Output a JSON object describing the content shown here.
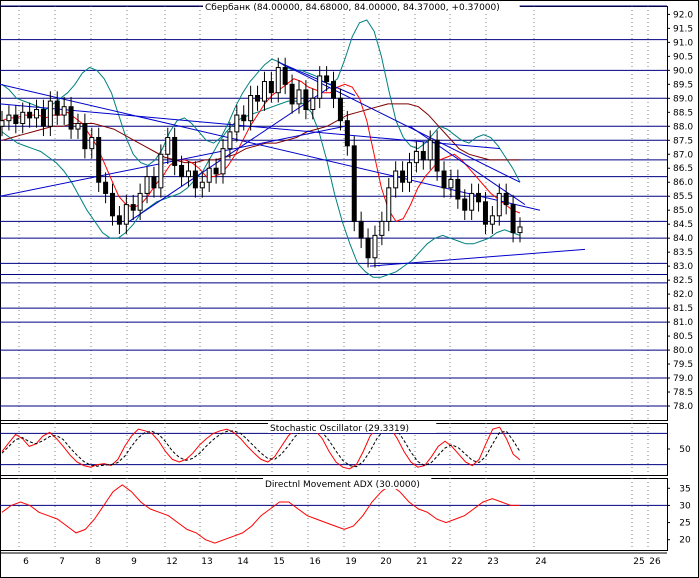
{
  "chart_data": [
    {
      "type": "candlestick",
      "title": "Сбербанк (84.00000, 84.68000, 84.00000, 84.37000, +0.37000)",
      "ylim": [
        77.5,
        92.3
      ],
      "y_ticks": [
        78.0,
        78.5,
        79.0,
        79.5,
        80.0,
        80.5,
        81.0,
        81.5,
        82.0,
        82.5,
        83.0,
        83.5,
        84.0,
        84.5,
        85.0,
        85.5,
        86.0,
        86.5,
        87.0,
        87.5,
        88.0,
        88.5,
        89.0,
        89.5,
        90.0,
        90.5,
        91.0,
        91.5,
        92.0
      ],
      "x_labels": [
        "6",
        "7",
        "8",
        "9",
        "12",
        "13",
        "14",
        "15",
        "16",
        "19",
        "20",
        "21",
        "22",
        "23",
        "24",
        "25",
        "26"
      ],
      "horizontal_levels": [
        92.3,
        91.1,
        90.0,
        89.0,
        88.0,
        87.5,
        86.8,
        86.2,
        85.5,
        84.6,
        84.0,
        83.1,
        82.7,
        82.4,
        81.5,
        81.0,
        80.0,
        79.0,
        78.0
      ],
      "close": [
        88.2,
        88.4,
        88.1,
        88.5,
        88.3,
        88.6,
        88.0,
        88.9,
        88.4,
        88.7,
        87.9,
        88.1,
        87.2,
        87.6,
        86.0,
        85.6,
        84.8,
        84.5,
        85.2,
        85.0,
        85.6,
        86.2,
        85.8,
        87.0,
        87.6,
        86.6,
        86.2,
        86.4,
        85.8,
        86.0,
        86.5,
        86.3,
        87.2,
        87.8,
        88.4,
        88.2,
        89.1,
        88.9,
        89.6,
        89.2,
        90.1,
        89.5,
        88.8,
        89.3,
        88.6,
        89.0,
        89.8,
        89.6,
        89.0,
        88.2,
        87.3,
        84.6,
        84.0,
        83.3,
        84.1,
        84.6,
        85.8,
        86.4,
        86.0,
        86.7,
        87.1,
        86.8,
        87.5,
        86.4,
        85.8,
        86.1,
        85.4,
        85.0,
        85.6,
        85.3,
        84.5,
        84.8,
        85.6,
        85.2,
        84.2,
        84.4
      ],
      "upper_band": [
        89.5,
        89.3,
        89.0,
        88.9,
        88.8,
        88.7,
        88.6,
        88.8,
        89.0,
        89.2,
        89.5,
        89.9,
        90.1,
        90.0,
        89.7,
        89.2,
        88.4,
        87.6,
        87.0,
        86.7,
        86.6,
        86.8,
        87.2,
        87.8,
        88.2,
        88.3,
        88.1,
        87.8,
        87.5,
        87.4,
        87.6,
        88.1,
        88.7,
        89.2,
        89.6,
        89.9,
        90.2,
        90.4,
        90.3,
        90.1,
        90.0,
        90.0,
        89.9,
        89.8,
        89.6,
        89.5,
        89.7,
        90.4,
        91.2,
        91.7,
        91.8,
        91.4,
        90.5,
        89.3,
        88.2,
        87.6,
        87.3,
        87.2,
        87.4,
        87.7,
        88.0,
        87.9,
        87.7,
        87.5,
        87.4,
        87.6,
        87.7,
        87.6,
        87.3,
        86.9,
        86.5,
        86.0
      ],
      "lower_band": [
        87.8,
        87.6,
        87.4,
        87.3,
        87.2,
        87.1,
        86.9,
        86.7,
        86.4,
        86.0,
        85.5,
        85.0,
        84.6,
        84.2,
        84.0,
        84.0,
        84.2,
        84.5,
        84.9,
        85.1,
        85.3,
        85.4,
        85.5,
        85.6,
        85.8,
        86.1,
        86.4,
        86.9,
        87.4,
        87.8,
        88.1,
        88.3,
        88.4,
        88.5,
        88.6,
        88.7,
        88.8,
        88.9,
        88.9,
        88.8,
        88.5,
        87.8,
        86.8,
        85.6,
        84.6,
        83.8,
        83.1,
        82.8,
        82.6,
        82.6,
        82.7,
        82.8,
        83.0,
        83.2,
        83.5,
        83.8,
        84.0,
        84.1,
        84.0,
        83.9,
        83.8,
        83.8,
        83.9,
        84.0,
        84.2,
        84.3,
        84.2,
        84.1
      ],
      "fast_ma": [
        88.2,
        88.3,
        88.3,
        88.4,
        88.4,
        88.4,
        88.3,
        88.4,
        88.4,
        88.5,
        88.3,
        88.1,
        87.7,
        87.3,
        86.7,
        86.1,
        85.5,
        85.2,
        85.1,
        85.2,
        85.5,
        85.9,
        86.2,
        86.6,
        86.8,
        86.8,
        86.7,
        86.5,
        86.2,
        86.2,
        86.3,
        86.6,
        87.0,
        87.5,
        88.0,
        88.4,
        88.8,
        89.1,
        89.3,
        89.5,
        89.7,
        89.6,
        89.4,
        89.3,
        89.2,
        89.2,
        89.4,
        89.5,
        89.4,
        89.0,
        88.2,
        87.0,
        85.8,
        85.0,
        84.6,
        84.7,
        85.2,
        85.8,
        86.2,
        86.5,
        86.8,
        86.9,
        87.0,
        86.8,
        86.5,
        86.2,
        85.9,
        85.6,
        85.4,
        85.2,
        85.0,
        84.9
      ],
      "slow_ma": [
        87.5,
        87.6,
        87.7,
        87.8,
        87.9,
        88.0,
        88.0,
        88.1,
        88.1,
        88.1,
        88.0,
        87.9,
        87.7,
        87.5,
        87.3,
        87.1,
        86.9,
        86.8,
        86.7,
        86.7,
        86.8,
        86.8,
        86.9,
        87.0,
        87.2,
        87.3,
        87.4,
        87.4,
        87.5,
        87.6,
        87.8,
        87.9,
        88.0,
        88.2,
        88.4,
        88.5,
        88.6,
        88.7,
        88.8,
        88.8,
        88.8,
        88.7,
        88.4,
        88.0,
        87.6,
        87.2,
        87.0,
        86.9,
        86.8,
        86.8,
        86.8,
        86.8
      ]
    },
    {
      "type": "line",
      "title": "Stochastic Oscillator (29.3319)",
      "ylim": [
        0,
        100
      ],
      "y_ticks": [
        50
      ],
      "levels": [
        80,
        20
      ],
      "series": [
        {
          "values": [
            45,
            62,
            78,
            70,
            55,
            60,
            75,
            82,
            70,
            55,
            38,
            25,
            18,
            15,
            20,
            22,
            18,
            30,
            55,
            75,
            88,
            85,
            80,
            65,
            45,
            30,
            25,
            30,
            42,
            58,
            70,
            80,
            85,
            88,
            82,
            70,
            55,
            42,
            30,
            25,
            35,
            55,
            75,
            88,
            92,
            90,
            85,
            70,
            45,
            25,
            15,
            12,
            20,
            45,
            75,
            92,
            95,
            90,
            70,
            45,
            25,
            15,
            18,
            35,
            55,
            65,
            55,
            40,
            25,
            18,
            30,
            60,
            88,
            92,
            70,
            40,
            29
          ]
        },
        {
          "values": [
            42,
            55,
            68,
            72,
            64,
            60,
            66,
            74,
            76,
            68,
            52,
            38,
            26,
            19,
            17,
            19,
            20,
            24,
            36,
            55,
            72,
            82,
            84,
            78,
            64,
            46,
            34,
            28,
            32,
            42,
            56,
            68,
            78,
            84,
            85,
            80,
            68,
            55,
            42,
            32,
            30,
            40,
            56,
            74,
            86,
            90,
            89,
            82,
            66,
            46,
            28,
            18,
            16,
            26,
            46,
            70,
            86,
            92,
            86,
            66,
            44,
            26,
            18,
            24,
            38,
            52,
            58,
            52,
            40,
            28,
            24,
            36,
            60,
            82,
            84,
            66,
            45
          ]
        }
      ]
    },
    {
      "type": "line",
      "title": "Directnl Movement ADX (30.0000)",
      "ylim": [
        17,
        38
      ],
      "y_ticks": [
        20,
        25,
        30,
        35
      ],
      "levels": [
        30
      ],
      "series": [
        {
          "values": [
            28,
            30,
            31,
            30,
            28,
            27,
            26,
            24,
            22,
            23,
            26,
            30,
            34,
            36,
            34,
            31,
            29,
            28,
            27,
            25,
            23,
            22,
            20,
            19,
            20,
            21,
            22,
            24,
            27,
            29,
            31,
            31,
            29,
            27,
            26,
            25,
            24,
            23,
            24,
            27,
            31,
            34,
            36,
            34,
            31,
            29,
            28,
            26,
            25,
            26,
            27,
            29,
            31,
            32,
            31,
            30,
            30
          ]
        }
      ]
    }
  ]
}
